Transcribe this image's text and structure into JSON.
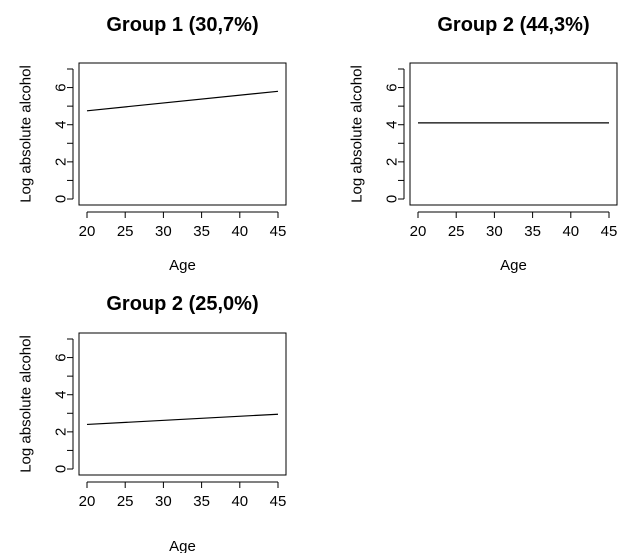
{
  "chart_data": [
    {
      "type": "line",
      "title": "Group 1 (30,7%)",
      "xlabel": "Age",
      "ylabel": "Log absolute alcohol",
      "x_ticks": [
        20,
        25,
        30,
        35,
        40,
        45
      ],
      "y_ticks": [
        0,
        2,
        4,
        6
      ],
      "y_minor_ticks": [
        1,
        3,
        5,
        7
      ],
      "xlim": [
        20,
        45
      ],
      "ylim": [
        0,
        7
      ],
      "grid": false,
      "x": [
        20,
        45
      ],
      "series": [
        {
          "values": [
            4.75,
            5.8
          ],
          "color": "#000000"
        }
      ]
    },
    {
      "type": "line",
      "title": "Group 2 (44,3%)",
      "xlabel": "Age",
      "ylabel": "Log absolute alcohol",
      "x_ticks": [
        20,
        25,
        30,
        35,
        40,
        45
      ],
      "y_ticks": [
        0,
        2,
        4,
        6
      ],
      "y_minor_ticks": [
        1,
        3,
        5,
        7
      ],
      "xlim": [
        20,
        45
      ],
      "ylim": [
        0,
        7
      ],
      "grid": false,
      "x": [
        20,
        45
      ],
      "series": [
        {
          "values": [
            4.1,
            4.1
          ],
          "color": "#000000"
        }
      ]
    },
    {
      "type": "line",
      "title": "Group 2 (25,0%)",
      "xlabel": "Age",
      "ylabel": "Log absolute alcohol",
      "x_ticks": [
        20,
        25,
        30,
        35,
        40,
        45
      ],
      "y_ticks": [
        0,
        2,
        4,
        6
      ],
      "y_minor_ticks": [
        1,
        3,
        5,
        7
      ],
      "xlim": [
        20,
        45
      ],
      "ylim": [
        0,
        7
      ],
      "grid": false,
      "x": [
        20,
        45
      ],
      "series": [
        {
          "values": [
            2.4,
            2.95
          ],
          "color": "#000000"
        }
      ]
    }
  ]
}
